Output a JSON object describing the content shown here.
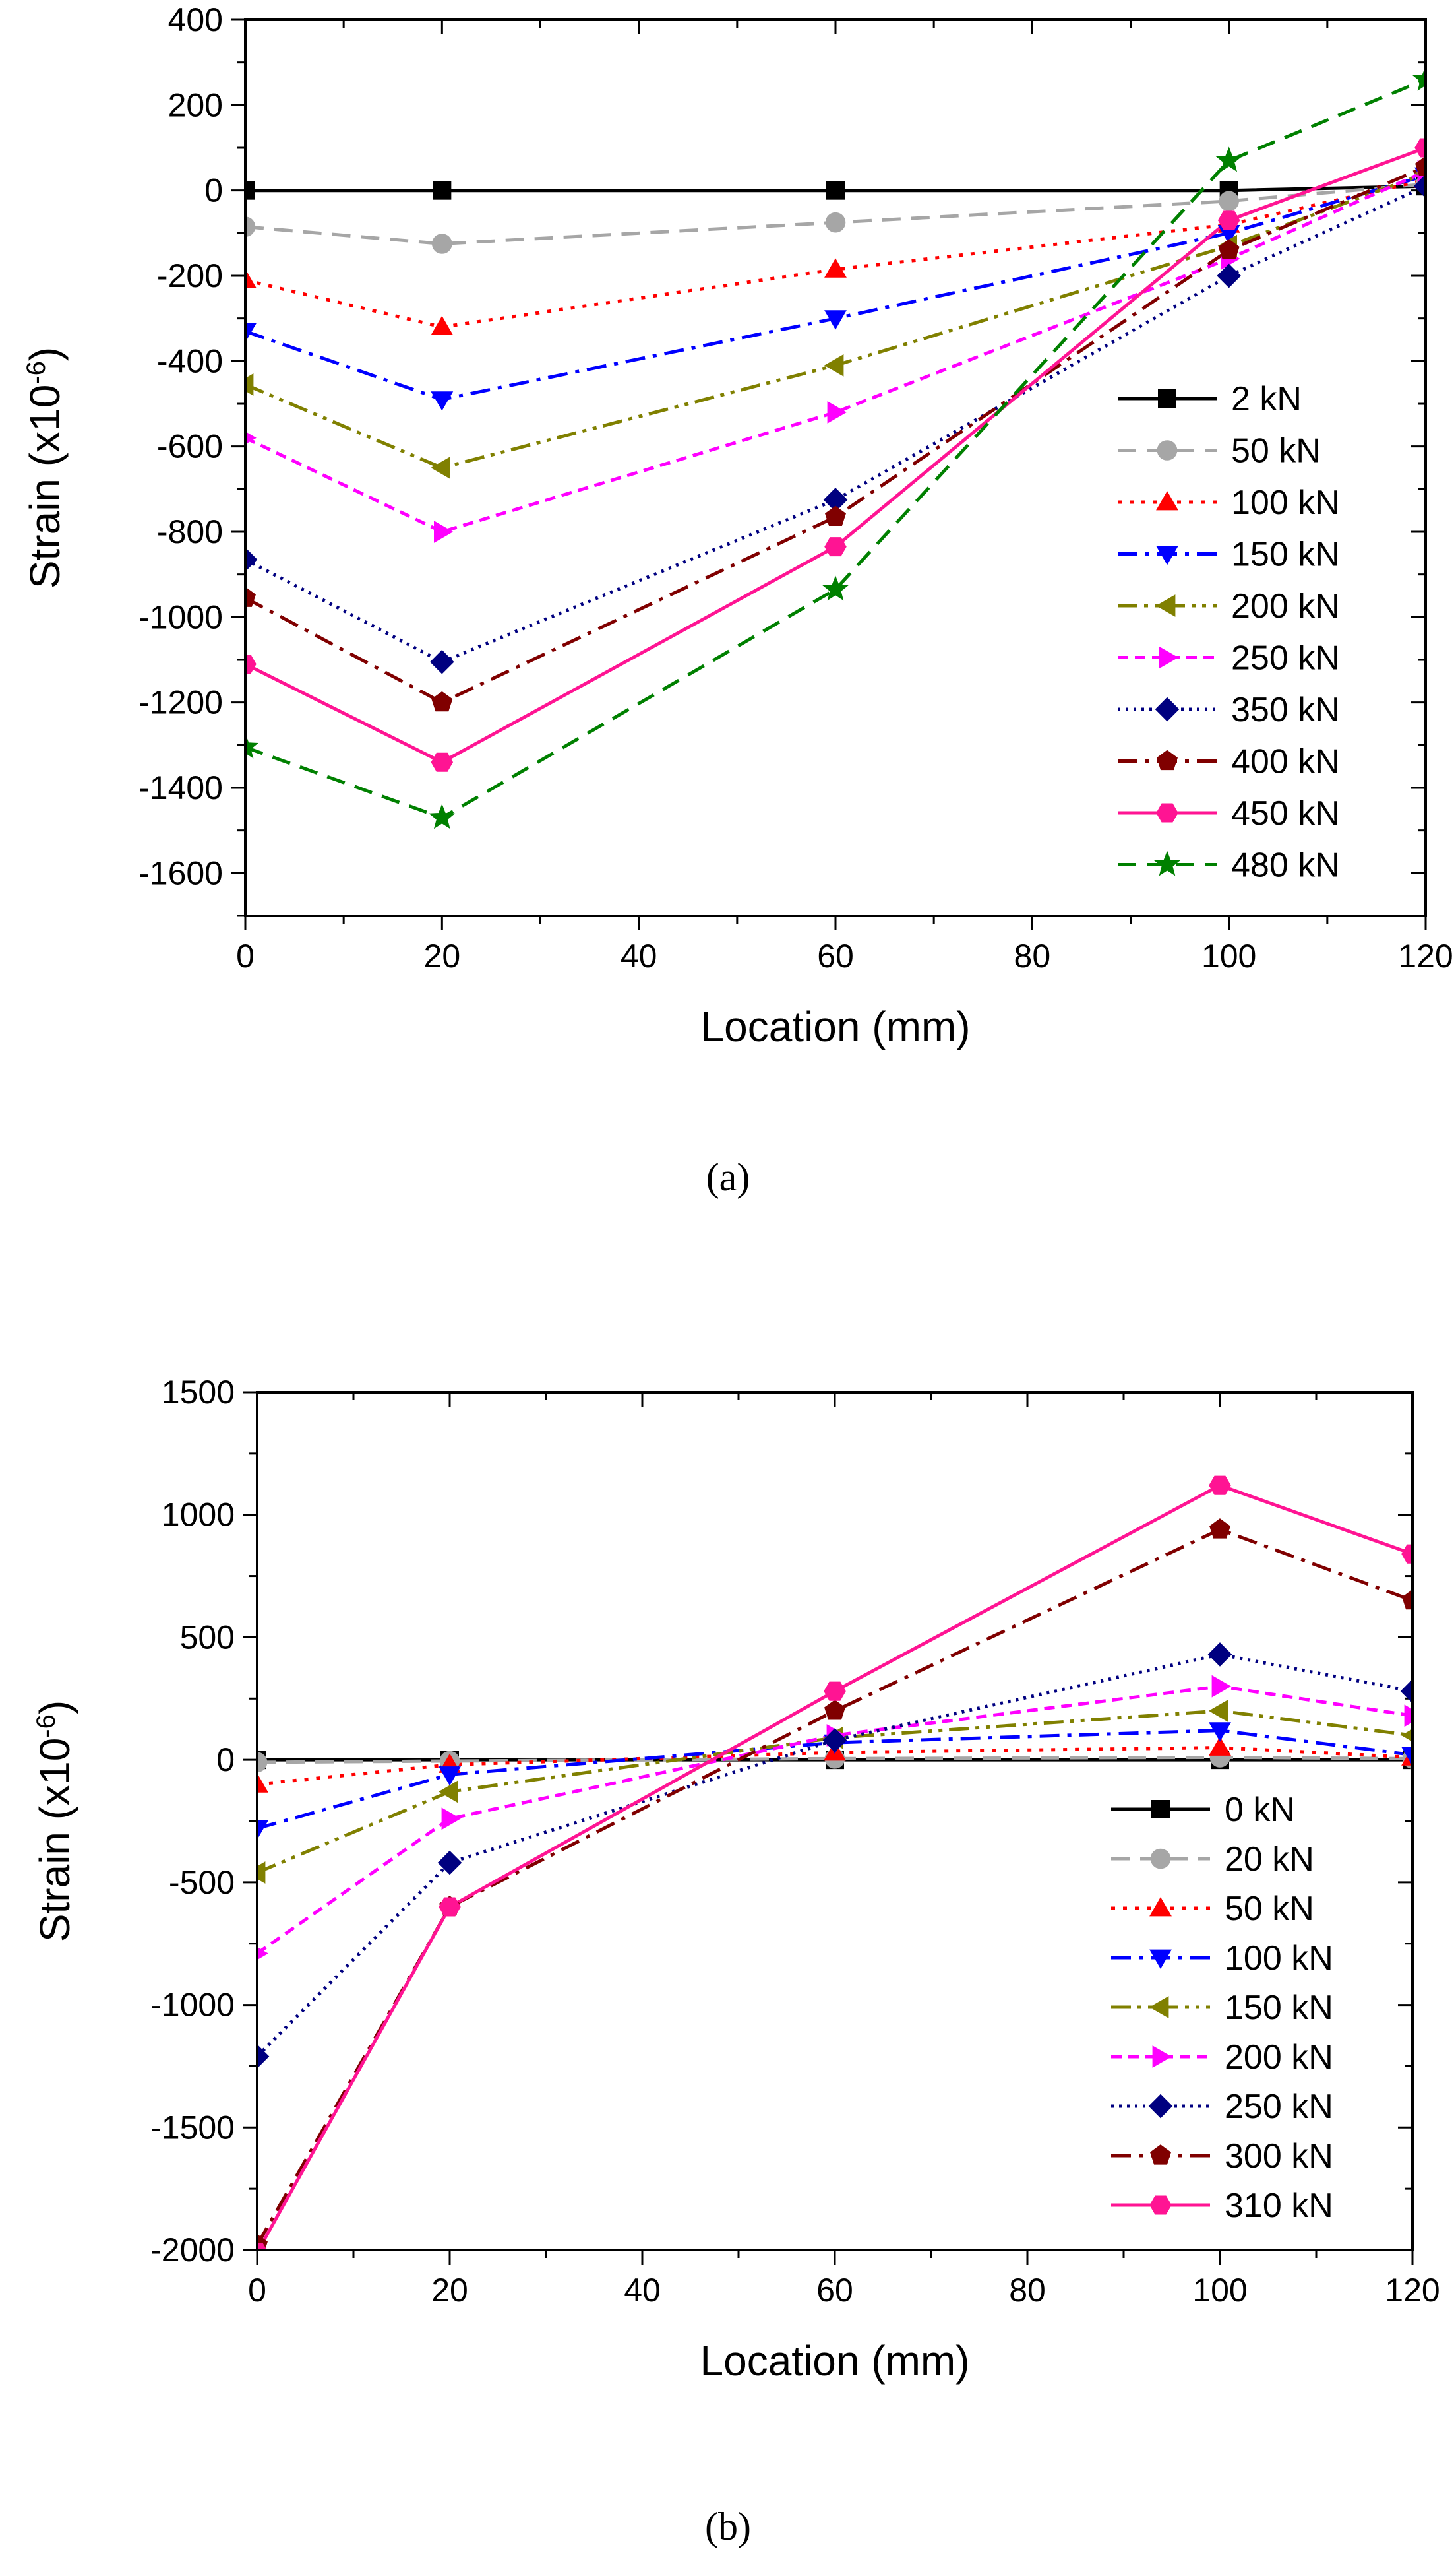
{
  "chart_data": [
    {
      "type": "line",
      "caption": "(a)",
      "xlabel": "Location (mm)",
      "ylabel": "Strain (x10",
      "ylabel_sup": "-6",
      "ylabel_end": ")",
      "xlim": [
        0,
        120
      ],
      "ylim": [
        -1700,
        400
      ],
      "x_ticks": [
        0,
        20,
        40,
        60,
        80,
        100,
        120
      ],
      "y_ticks": [
        -1600,
        -1400,
        -1200,
        -1000,
        -800,
        -600,
        -400,
        -200,
        0,
        200,
        400
      ],
      "x_tick_labels": [
        "0",
        "20",
        "40",
        "60",
        "80",
        "100",
        "120"
      ],
      "y_tick_labels": [
        "-1600",
        "-1400",
        "-1200",
        "-1000",
        "-800",
        "-600",
        "-400",
        "-200",
        "0",
        "200",
        "400"
      ],
      "x": [
        0,
        20,
        60,
        100,
        120
      ],
      "legend_placement": "right",
      "grid": false,
      "series": [
        {
          "name": "2 kN",
          "values": [
            0,
            0,
            0,
            0,
            10
          ],
          "color": "#000000",
          "dash": "solid",
          "marker": "square"
        },
        {
          "name": "50 kN",
          "values": [
            -85,
            -125,
            -75,
            -25,
            15
          ],
          "color": "#a6a6a6",
          "dash": "dash",
          "marker": "circle"
        },
        {
          "name": "100 kN",
          "values": [
            -210,
            -320,
            -185,
            -80,
            25
          ],
          "color": "#ff0000",
          "dash": "dot",
          "marker": "triangle-up"
        },
        {
          "name": "150 kN",
          "values": [
            -330,
            -490,
            -300,
            -100,
            35
          ],
          "color": "#0000ff",
          "dash": "dashdot",
          "marker": "triangle-down"
        },
        {
          "name": "200 kN",
          "values": [
            -455,
            -650,
            -410,
            -130,
            40
          ],
          "color": "#808000",
          "dash": "dashdotdot",
          "marker": "triangle-left"
        },
        {
          "name": "250 kN",
          "values": [
            -580,
            -800,
            -520,
            -160,
            45
          ],
          "color": "#ff00ff",
          "dash": "shortdash",
          "marker": "triangle-right"
        },
        {
          "name": "350 kN",
          "values": [
            -865,
            -1105,
            -725,
            -200,
            10
          ],
          "color": "#000080",
          "dash": "shortdot",
          "marker": "diamond"
        },
        {
          "name": "400 kN",
          "values": [
            -955,
            -1200,
            -765,
            -140,
            55
          ],
          "color": "#800000",
          "dash": "dashdot",
          "marker": "pentagon"
        },
        {
          "name": "450 kN",
          "values": [
            -1110,
            -1340,
            -835,
            -70,
            100
          ],
          "color": "#ff1493",
          "dash": "solid",
          "marker": "hexagon"
        },
        {
          "name": "480 kN",
          "values": [
            -1305,
            -1470,
            -935,
            70,
            260
          ],
          "color": "#008000",
          "dash": "dash",
          "marker": "star"
        }
      ]
    },
    {
      "type": "line",
      "caption": "(b)",
      "xlabel": "Location (mm)",
      "ylabel": "Strain (x10",
      "ylabel_sup": "-6",
      "ylabel_end": ")",
      "xlim": [
        0,
        120
      ],
      "ylim": [
        -2000,
        1500
      ],
      "x_ticks": [
        0,
        20,
        40,
        60,
        80,
        100,
        120
      ],
      "y_ticks": [
        -2000,
        -1500,
        -1000,
        -500,
        0,
        500,
        1000,
        1500
      ],
      "x_tick_labels": [
        "0",
        "20",
        "40",
        "60",
        "80",
        "100",
        "120"
      ],
      "y_tick_labels": [
        "-2000",
        "-1500",
        "-1000",
        "-500",
        "0",
        "500",
        "1000",
        "1500"
      ],
      "x": [
        0,
        20,
        60,
        100,
        120
      ],
      "legend_placement": "bottom-right",
      "grid": false,
      "series": [
        {
          "name": "0 kN",
          "values": [
            0,
            0,
            0,
            0,
            0
          ],
          "color": "#000000",
          "dash": "solid",
          "marker": "square"
        },
        {
          "name": "20 kN",
          "values": [
            -10,
            -5,
            5,
            10,
            5
          ],
          "color": "#a6a6a6",
          "dash": "dash",
          "marker": "circle"
        },
        {
          "name": "50 kN",
          "values": [
            -100,
            -20,
            30,
            50,
            10
          ],
          "color": "#ff0000",
          "dash": "dot",
          "marker": "triangle-up"
        },
        {
          "name": "100 kN",
          "values": [
            -280,
            -60,
            70,
            120,
            20
          ],
          "color": "#0000ff",
          "dash": "dashdot",
          "marker": "triangle-down"
        },
        {
          "name": "150 kN",
          "values": [
            -460,
            -130,
            90,
            200,
            100
          ],
          "color": "#808000",
          "dash": "dashdotdot",
          "marker": "triangle-left"
        },
        {
          "name": "200 kN",
          "values": [
            -790,
            -240,
            100,
            300,
            180
          ],
          "color": "#ff00ff",
          "dash": "shortdash",
          "marker": "triangle-right"
        },
        {
          "name": "250 kN",
          "values": [
            -1210,
            -420,
            80,
            430,
            280
          ],
          "color": "#000080",
          "dash": "shortdot",
          "marker": "diamond"
        },
        {
          "name": "300 kN",
          "values": [
            -1980,
            -600,
            200,
            940,
            650
          ],
          "color": "#800000",
          "dash": "dashdot",
          "marker": "pentagon"
        },
        {
          "name": "310 kN",
          "values": [
            -2010,
            -600,
            280,
            1120,
            840
          ],
          "color": "#ff1493",
          "dash": "solid",
          "marker": "hexagon"
        }
      ]
    }
  ]
}
